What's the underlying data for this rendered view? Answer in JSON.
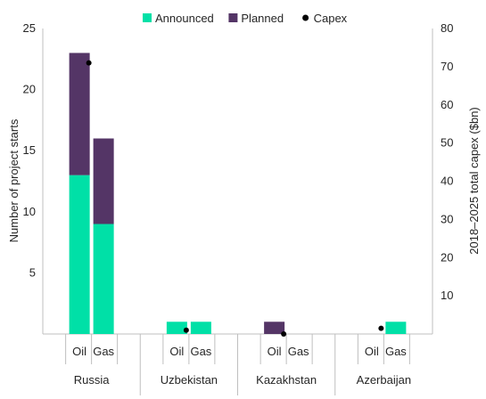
{
  "chart_data": {
    "type": "bar",
    "stacked": true,
    "subcategories": [
      "Oil",
      "Gas"
    ],
    "groups": [
      "Russia",
      "Uzbekistan",
      "Kazakhstan",
      "Azerbaijan"
    ],
    "x": [
      "Russia Oil",
      "Russia Gas",
      "Uzbekistan Oil",
      "Uzbekistan Gas",
      "Kazakhstan Oil",
      "Kazakhstan Gas",
      "Azerbaijan Oil",
      "Azerbaijan Gas"
    ],
    "series": [
      {
        "name": "Announced",
        "axis": "left",
        "color": "#00E0A7",
        "values": [
          13,
          9,
          1,
          1,
          0,
          0,
          0,
          1
        ]
      },
      {
        "name": "Planned",
        "axis": "left",
        "color": "#543566",
        "values": [
          10,
          7,
          0,
          0,
          1,
          0,
          0,
          0
        ]
      },
      {
        "name": "Capex",
        "axis": "right",
        "marker": "dot",
        "color": "#000000",
        "values": [
          71,
          null,
          1,
          null,
          0,
          null,
          1.5,
          null
        ]
      }
    ],
    "ylabel": "Number of project starts",
    "y2label": "2018–2025 total capex ($bn)",
    "ylim": [
      0,
      25
    ],
    "y2lim": [
      0,
      80
    ],
    "yticks": [
      "5",
      "10",
      "15",
      "20",
      "25"
    ],
    "y2ticks": [
      "10",
      "20",
      "30",
      "40",
      "50",
      "60",
      "70",
      "80"
    ],
    "grid": false,
    "legend": "top-center"
  }
}
